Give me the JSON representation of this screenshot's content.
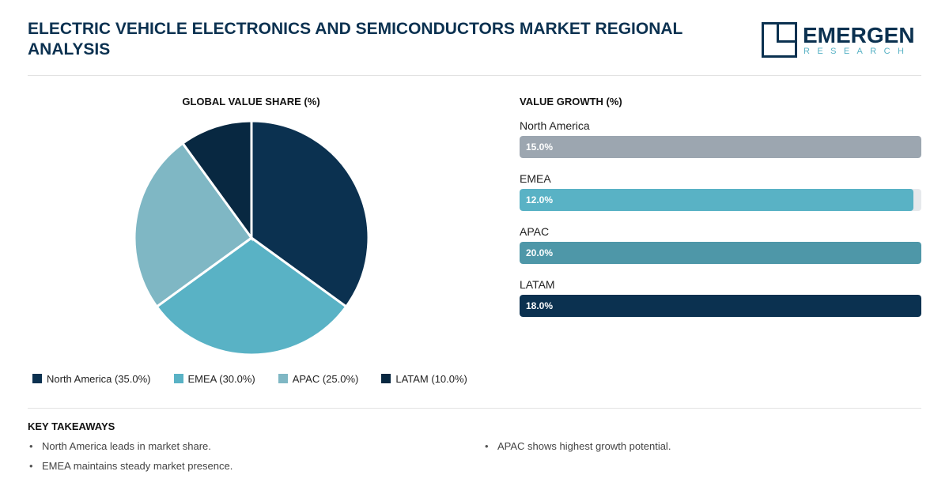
{
  "header": {
    "title": "ELECTRIC VEHICLE ELECTRONICS AND SEMICONDUCTORS MARKET REGIONAL ANALYSIS",
    "logo_name": "EMERGEN",
    "logo_sub": "RESEARCH"
  },
  "colors": {
    "navy": "#0b3150",
    "teal": "#59b2c5",
    "light_teal": "#7fb7c4",
    "dark_navy": "#082841",
    "gray_bar": "#9ca6b0",
    "teal_bar": "#4e97a8"
  },
  "chart_data": [
    {
      "type": "pie",
      "title": "GLOBAL VALUE SHARE (%)",
      "categories": [
        "North America",
        "EMEA",
        "APAC",
        "LATAM"
      ],
      "values": [
        35.0,
        30.0,
        25.0,
        10.0
      ],
      "colors": [
        "#0b3150",
        "#59b2c5",
        "#7fb7c4",
        "#082841"
      ],
      "legend": [
        "North America (35.0%)",
        "EMEA (30.0%)",
        "APAC (25.0%)",
        "LATAM (10.0%)"
      ],
      "legend_position": "bottom"
    },
    {
      "type": "bar",
      "orientation": "horizontal",
      "title": "VALUE GROWTH (%)",
      "categories": [
        "North America",
        "EMEA",
        "APAC",
        "LATAM"
      ],
      "values": [
        15.0,
        12.0,
        20.0,
        18.0
      ],
      "labels": [
        "15.0%",
        "12.0%",
        "20.0%",
        "18.0%"
      ],
      "fill_fraction": [
        1.0,
        0.98,
        1.0,
        1.0
      ],
      "colors": [
        "#9ca6b0",
        "#59b2c5",
        "#4e97a8",
        "#0b3150"
      ]
    }
  ],
  "takeaways": {
    "title": "KEY TAKEAWAYS",
    "left": [
      "North America leads in market share.",
      "EMEA maintains steady market presence."
    ],
    "right": [
      "APAC shows highest growth potential."
    ]
  }
}
